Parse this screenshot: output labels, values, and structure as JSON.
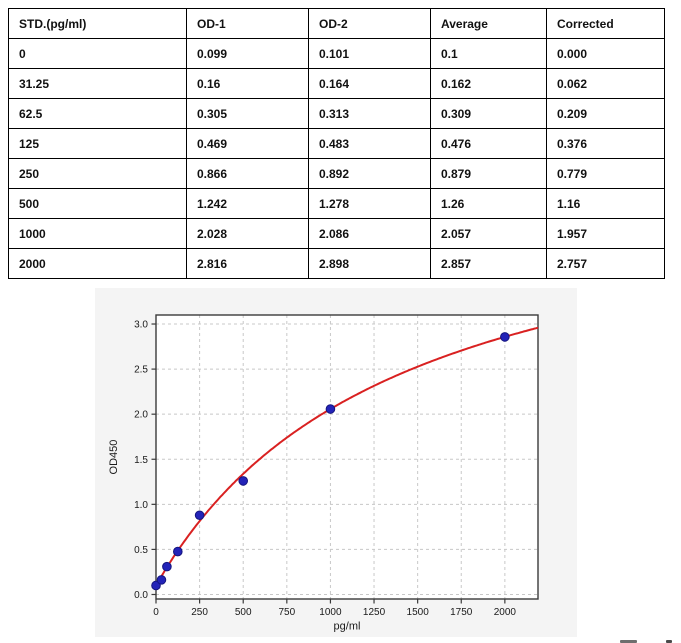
{
  "table": {
    "headers": [
      "STD.(pg/ml)",
      "OD-1",
      "OD-2",
      "Average",
      "Corrected"
    ],
    "rows": [
      [
        "0",
        "0.099",
        "0.101",
        "0.1",
        "0.000"
      ],
      [
        "31.25",
        "0.16",
        "0.164",
        "0.162",
        "0.062"
      ],
      [
        "62.5",
        "0.305",
        "0.313",
        "0.309",
        "0.209"
      ],
      [
        "125",
        "0.469",
        "0.483",
        "0.476",
        "0.376"
      ],
      [
        "250",
        "0.866",
        "0.892",
        "0.879",
        "0.779"
      ],
      [
        "500",
        "1.242",
        "1.278",
        "1.26",
        "1.16"
      ],
      [
        "1000",
        "2.028",
        "2.086",
        "2.057",
        "1.957"
      ],
      [
        "2000",
        "2.816",
        "2.898",
        "2.857",
        "2.757"
      ]
    ]
  },
  "chart_data": {
    "type": "scatter",
    "title": "",
    "xlabel": "pg/ml",
    "ylabel": "OD450",
    "x": [
      0,
      31.25,
      62.5,
      125,
      250,
      500,
      1000,
      2000
    ],
    "y": [
      0.1,
      0.162,
      0.309,
      0.476,
      0.879,
      1.26,
      2.057,
      2.857
    ],
    "fit": {
      "type": "saturation",
      "formula": "y = y0 + vmax*x/(k+x)",
      "y0": 0.1,
      "vmax": 4.666,
      "k": 1384
    },
    "xticks": [
      0,
      250,
      500,
      750,
      1000,
      1250,
      1500,
      1750,
      2000
    ],
    "yticks": [
      0.0,
      0.5,
      1.0,
      1.5,
      2.0,
      2.5,
      3.0
    ],
    "xlim": [
      0,
      2190
    ],
    "ylim": [
      -0.05,
      3.1
    ],
    "grid": true,
    "grid_style": "dashed",
    "legend": "none",
    "colors": {
      "curve": "#d92121",
      "points": "#2323b8",
      "point_edge": "#15157e",
      "grid": "#c8c8c8",
      "spine": "#3a3a3a",
      "tick_text": "#1a1a1a",
      "panel_bg": "#f4f4f4",
      "plot_bg": "#ffffff"
    }
  }
}
